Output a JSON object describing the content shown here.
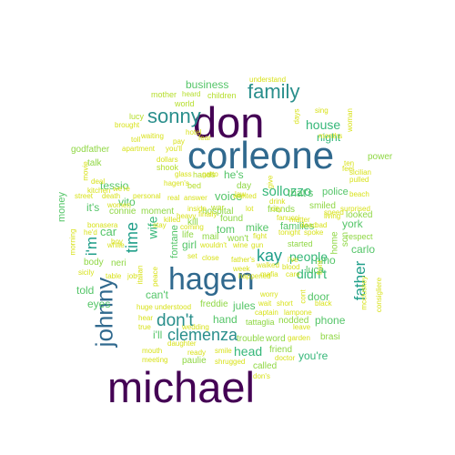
{
  "palette": {
    "xl": "#440154",
    "lg": "#30698e",
    "md": "#1f9e89",
    "sm": "#6ece58",
    "xs": "#b5de2b",
    "xxs": "#d8e21a"
  },
  "words": [
    {
      "text": "michael",
      "size": "xl"
    },
    {
      "text": "don",
      "size": "xl"
    },
    {
      "text": "corleone",
      "size": "lg"
    },
    {
      "text": "hagen",
      "size": "lg"
    },
    {
      "text": "johnny",
      "size": "lg"
    },
    {
      "text": "family",
      "size": "md"
    },
    {
      "text": "sonny",
      "size": "md"
    },
    {
      "text": "don't",
      "size": "md"
    },
    {
      "text": "clemenza",
      "size": "md"
    },
    {
      "text": "time",
      "size": "md"
    },
    {
      "text": "kay",
      "size": "md"
    },
    {
      "text": "father",
      "size": "md"
    },
    {
      "text": "i'm",
      "size": "md"
    },
    {
      "text": "wife",
      "size": "sm"
    },
    {
      "text": "sollozzo",
      "size": "sm"
    },
    {
      "text": "people",
      "size": "sm"
    },
    {
      "text": "didn't",
      "size": "sm"
    },
    {
      "text": "house",
      "size": "sm"
    },
    {
      "text": "night",
      "size": "sm"
    },
    {
      "text": "head",
      "size": "sm"
    },
    {
      "text": "you're",
      "size": "sm"
    },
    {
      "text": "business",
      "size": "sm"
    },
    {
      "text": "car",
      "size": "sm"
    },
    {
      "text": "voice",
      "size": "sm"
    },
    {
      "text": "he's",
      "size": "sm"
    },
    {
      "text": "tom",
      "size": "sm"
    },
    {
      "text": "mike",
      "size": "sm"
    },
    {
      "text": "nino",
      "size": "sm"
    },
    {
      "text": "carlo",
      "size": "sm"
    },
    {
      "text": "hand",
      "size": "sm"
    },
    {
      "text": "jules",
      "size": "sm"
    },
    {
      "text": "door",
      "size": "sm"
    },
    {
      "text": "tessio",
      "size": "sm"
    },
    {
      "text": "vito",
      "size": "sm"
    },
    {
      "text": "it's",
      "size": "sm"
    },
    {
      "text": "told",
      "size": "sm"
    },
    {
      "text": "eyes",
      "size": "sm"
    },
    {
      "text": "fontane",
      "size": "sm"
    },
    {
      "text": "girl",
      "size": "sm"
    },
    {
      "text": "can't",
      "size": "sm"
    },
    {
      "text": "i'll",
      "size": "sm"
    },
    {
      "text": "luca",
      "size": "sm"
    },
    {
      "text": "york",
      "size": "sm"
    },
    {
      "text": "phone",
      "size": "sm"
    },
    {
      "text": "that's",
      "size": "sm"
    },
    {
      "text": "police",
      "size": "sm"
    },
    {
      "text": "families",
      "size": "sm"
    },
    {
      "text": "money",
      "size": "sm"
    },
    {
      "text": "talk",
      "size": "xs"
    },
    {
      "text": "neri",
      "size": "xs"
    },
    {
      "text": "body",
      "size": "xs"
    },
    {
      "text": "connie",
      "size": "xs"
    },
    {
      "text": "looked",
      "size": "xs"
    },
    {
      "text": "smiled",
      "size": "xs"
    },
    {
      "text": "friends",
      "size": "xs"
    },
    {
      "text": "day",
      "size": "xs"
    },
    {
      "text": "won't",
      "size": "xs"
    },
    {
      "text": "life",
      "size": "xs"
    },
    {
      "text": "mail",
      "size": "xs"
    },
    {
      "text": "found",
      "size": "xs"
    },
    {
      "text": "kill",
      "size": "xs"
    },
    {
      "text": "moment",
      "size": "xs"
    },
    {
      "text": "word",
      "size": "xs"
    },
    {
      "text": "brasi",
      "size": "xs"
    },
    {
      "text": "friend",
      "size": "xs"
    },
    {
      "text": "called",
      "size": "xs"
    },
    {
      "text": "trouble",
      "size": "xs"
    },
    {
      "text": "paulie",
      "size": "xs"
    },
    {
      "text": "freddie",
      "size": "xs"
    },
    {
      "text": "nodded",
      "size": "xs"
    },
    {
      "text": "tattaglia",
      "size": "xs"
    },
    {
      "text": "hospital",
      "size": "xs"
    },
    {
      "text": "started",
      "size": "xs"
    },
    {
      "text": "power",
      "size": "xs"
    },
    {
      "text": "son",
      "size": "xs"
    },
    {
      "text": "home",
      "size": "xs"
    },
    {
      "text": "respect",
      "size": "xs"
    },
    {
      "text": "godfather",
      "size": "xs"
    },
    {
      "text": "mother",
      "size": "xxs"
    },
    {
      "text": "heard",
      "size": "xxs"
    },
    {
      "text": "children",
      "size": "xxs"
    },
    {
      "text": "world",
      "size": "xxs"
    },
    {
      "text": "understand",
      "size": "xxs"
    },
    {
      "text": "lucy",
      "size": "xxs"
    },
    {
      "text": "brought",
      "size": "xxs"
    },
    {
      "text": "waiting",
      "size": "xxs"
    },
    {
      "text": "dollars",
      "size": "xxs"
    },
    {
      "text": "shook",
      "size": "xxs"
    },
    {
      "text": "hands",
      "size": "xxs"
    },
    {
      "text": "bed",
      "size": "xxs"
    },
    {
      "text": "law",
      "size": "xxs"
    },
    {
      "text": "apartment",
      "size": "xxs"
    },
    {
      "text": "you'll",
      "size": "xxs"
    },
    {
      "text": "kitchen",
      "size": "xxs"
    },
    {
      "text": "street",
      "size": "xxs"
    },
    {
      "text": "death",
      "size": "xxs"
    },
    {
      "text": "women",
      "size": "xxs"
    },
    {
      "text": "personal",
      "size": "xxs"
    },
    {
      "text": "real",
      "size": "xxs"
    },
    {
      "text": "answer",
      "size": "xxs"
    },
    {
      "text": "war",
      "size": "xxs"
    },
    {
      "text": "coming",
      "size": "xxs"
    },
    {
      "text": "wouldn't",
      "size": "xxs"
    },
    {
      "text": "wine",
      "size": "xxs"
    },
    {
      "text": "gun",
      "size": "xxs"
    },
    {
      "text": "bonasera",
      "size": "xxs"
    },
    {
      "text": "morning",
      "size": "xxs"
    },
    {
      "text": "table",
      "size": "xxs"
    },
    {
      "text": "sicily",
      "size": "xxs"
    },
    {
      "text": "italian",
      "size": "xxs"
    },
    {
      "text": "huge",
      "size": "xxs"
    },
    {
      "text": "understood",
      "size": "xxs"
    },
    {
      "text": "fanucci",
      "size": "xxs"
    },
    {
      "text": "matter",
      "size": "xxs"
    },
    {
      "text": "spoke",
      "size": "xxs"
    },
    {
      "text": "tonight",
      "size": "xxs"
    },
    {
      "text": "living",
      "size": "xxs"
    },
    {
      "text": "surprised",
      "size": "xxs"
    },
    {
      "text": "beach",
      "size": "xxs"
    },
    {
      "text": "sicilian",
      "size": "xxs"
    },
    {
      "text": "pulled",
      "size": "xxs"
    },
    {
      "text": "feel",
      "size": "xxs"
    },
    {
      "text": "months",
      "size": "xxs"
    },
    {
      "text": "days",
      "size": "xxs"
    },
    {
      "text": "sing",
      "size": "xxs"
    },
    {
      "text": "woman",
      "size": "xxs"
    },
    {
      "text": "mccluskey",
      "size": "xxs"
    },
    {
      "text": "consigliere",
      "size": "xxs"
    },
    {
      "text": "captain",
      "size": "xxs"
    },
    {
      "text": "lampone",
      "size": "xxs"
    },
    {
      "text": "wedding",
      "size": "xxs"
    },
    {
      "text": "daughter",
      "size": "xxs"
    },
    {
      "text": "mouth",
      "size": "xxs"
    },
    {
      "text": "meeting",
      "size": "xxs"
    },
    {
      "text": "ready",
      "size": "xxs"
    },
    {
      "text": "smile",
      "size": "xxs"
    },
    {
      "text": "shrugged",
      "size": "xxs"
    },
    {
      "text": "garden",
      "size": "xxs"
    },
    {
      "text": "leave",
      "size": "xxs"
    },
    {
      "text": "doctor",
      "size": "xxs"
    },
    {
      "text": "don's",
      "size": "xxs"
    },
    {
      "text": "worry",
      "size": "xxs"
    },
    {
      "text": "happened",
      "size": "xxs"
    },
    {
      "text": "walked",
      "size": "xxs"
    },
    {
      "text": "blood",
      "size": "xxs"
    },
    {
      "text": "mafia",
      "size": "xxs"
    },
    {
      "text": "care",
      "size": "xxs"
    },
    {
      "text": "week",
      "size": "xxs"
    },
    {
      "text": "father's",
      "size": "xxs"
    },
    {
      "text": "glass",
      "size": "xxs"
    },
    {
      "text": "gatto",
      "size": "xxs"
    },
    {
      "text": "hagen's",
      "size": "xxs"
    },
    {
      "text": "hotel",
      "size": "xxs"
    },
    {
      "text": "fear",
      "size": "xxs"
    },
    {
      "text": "deal",
      "size": "xxs"
    },
    {
      "text": "drink",
      "size": "xxs"
    },
    {
      "text": "city",
      "size": "xxs"
    },
    {
      "text": "peace",
      "size": "xxs"
    },
    {
      "text": "hear",
      "size": "xxs"
    },
    {
      "text": "true",
      "size": "xxs"
    },
    {
      "text": "black",
      "size": "xxs"
    },
    {
      "text": "wait",
      "size": "xxs"
    },
    {
      "text": "short",
      "size": "xxs"
    },
    {
      "text": "job",
      "size": "xxs"
    },
    {
      "text": "killed",
      "size": "xxs"
    },
    {
      "text": "white",
      "size": "xxs"
    },
    {
      "text": "heavy",
      "size": "xxs"
    },
    {
      "text": "finally",
      "size": "xxs"
    },
    {
      "text": "close",
      "size": "xxs"
    },
    {
      "text": "inside",
      "size": "xxs"
    },
    {
      "text": "stay",
      "size": "xxs"
    },
    {
      "text": "set",
      "size": "xxs"
    },
    {
      "text": "boy",
      "size": "xxs"
    },
    {
      "text": "he'd",
      "size": "xxs"
    },
    {
      "text": "dead",
      "size": "xxs"
    },
    {
      "text": "bad",
      "size": "xxs"
    },
    {
      "text": "lot",
      "size": "xxs"
    },
    {
      "text": "front",
      "size": "xxs"
    },
    {
      "text": "speed",
      "size": "xxs"
    },
    {
      "text": "ten",
      "size": "xxs"
    },
    {
      "text": "pay",
      "size": "xxs"
    },
    {
      "text": "we're",
      "size": "xxs"
    },
    {
      "text": "movie",
      "size": "xxs"
    },
    {
      "text": "wanted",
      "size": "xxs"
    },
    {
      "text": "i've",
      "size": "xxs"
    },
    {
      "text": "cont",
      "size": "xxs"
    },
    {
      "text": "toll",
      "size": "xxs"
    },
    {
      "text": "give",
      "size": "xxs"
    },
    {
      "text": "fight",
      "size": "xxs"
    }
  ]
}
